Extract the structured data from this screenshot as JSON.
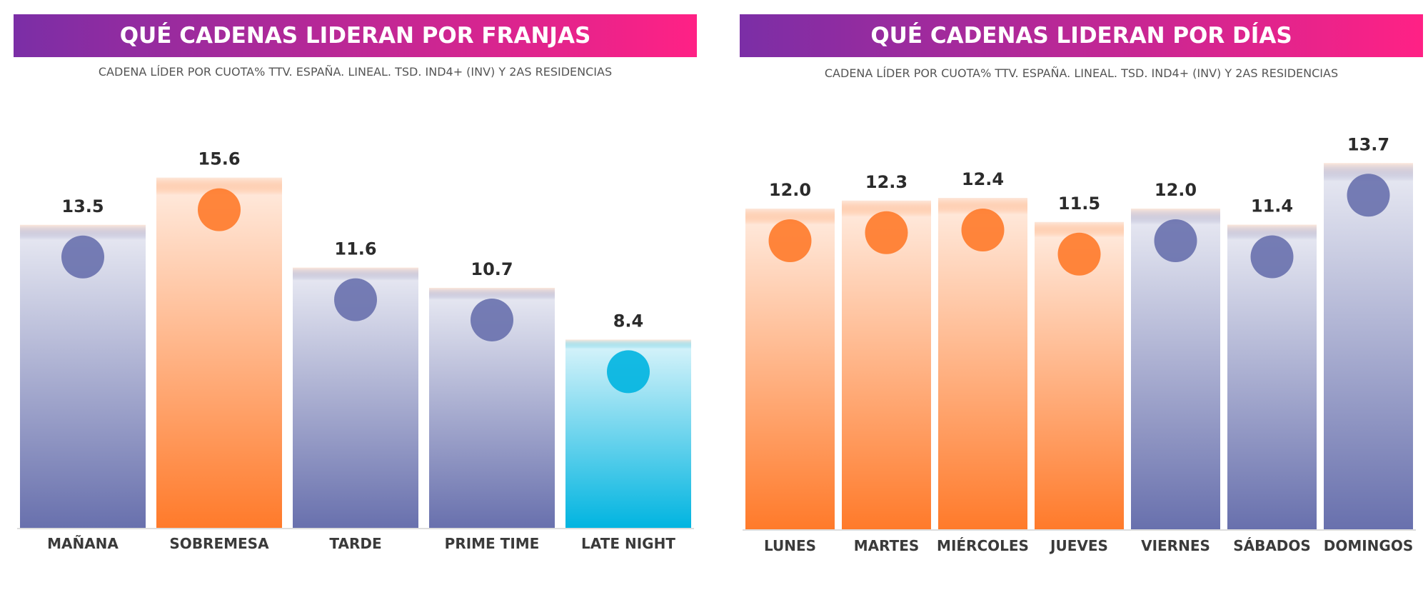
{
  "chart_data": [
    {
      "type": "bar",
      "title": "QUÉ CADENAS LIDERAN POR FRANJAS",
      "subtitle": "CADENA LÍDER POR CUOTA% TTV. ESPAÑA. LINEAL. TSD. IND4+ (INV) Y 2AS RESIDENCIAS",
      "categories": [
        "MAÑANA",
        "SOBREMESA",
        "TARDE",
        "PRIME TIME",
        "LATE NIGHT"
      ],
      "values": [
        13.5,
        15.6,
        11.6,
        10.7,
        8.4
      ],
      "value_labels": [
        "13.5",
        "15.6",
        "11.6",
        "10.7",
        "8.4"
      ],
      "colors": [
        "#6870ad",
        "#ff7a2a",
        "#6870ad",
        "#6870ad",
        "#00b4e0"
      ]
    },
    {
      "type": "bar",
      "title": "QUÉ CADENAS LIDERAN POR DÍAS",
      "subtitle": "CADENA LÍDER POR CUOTA% TTV. ESPAÑA. LINEAL. TSD. IND4+ (INV) Y 2AS RESIDENCIAS",
      "categories": [
        "LUNES",
        "MARTES",
        "MIÉRCOLES",
        "JUEVES",
        "VIERNES",
        "SÁBADOS",
        "DOMINGOS"
      ],
      "values": [
        12.0,
        12.3,
        12.4,
        11.5,
        12.0,
        11.4,
        13.7
      ],
      "value_labels": [
        "12.0",
        "12.3",
        "12.4",
        "11.5",
        "12.0",
        "11.4",
        "13.7"
      ],
      "colors": [
        "#ff7a2a",
        "#ff7a2a",
        "#ff7a2a",
        "#ff7a2a",
        "#6870ad",
        "#6870ad",
        "#6870ad"
      ]
    }
  ]
}
